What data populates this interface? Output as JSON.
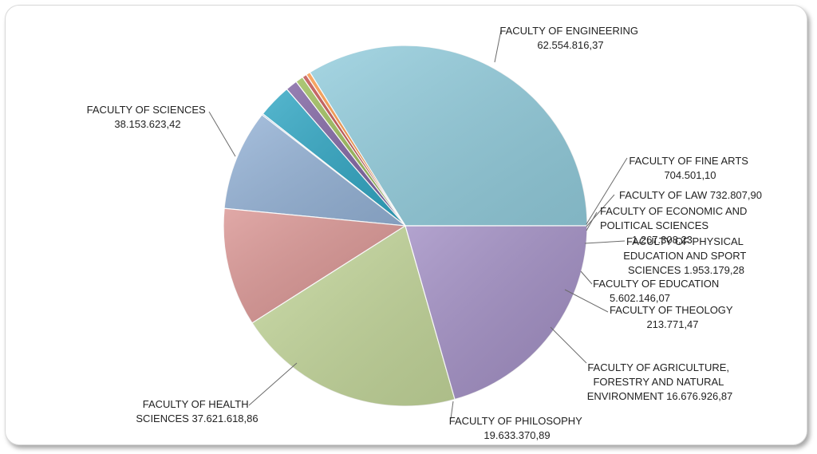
{
  "chart_data": {
    "type": "pie",
    "title": "",
    "slices": [
      {
        "name": "FACULTY OF ENGINEERING",
        "value": 62554816.37,
        "value_label": "62.554.816,37",
        "color": "#93cddd"
      },
      {
        "name": "FACULTY OF FINE ARTS",
        "value": 704501.1,
        "value_label": "704.501,10",
        "color": "#f79646"
      },
      {
        "name": "FACULTY OF LAW",
        "value": 732807.9,
        "value_label": "732.807,90",
        "color": "#c0504d"
      },
      {
        "name": "FACULTY OF ECONOMIC AND POLITICAL SCIENCES",
        "value": 1267308.23,
        "value_label": "1.267.308,23",
        "color": "#9bbb59"
      },
      {
        "name": "FACULTY OF PHYSICAL EDUCATION AND SPORT SCIENCES",
        "value": 1953179.28,
        "value_label": "1.953.179,28",
        "color": "#8064a2"
      },
      {
        "name": "FACULTY OF EDUCATION",
        "value": 5602146.07,
        "value_label": "5.602.146,07",
        "color": "#31a7c4"
      },
      {
        "name": "FACULTY OF THEOLOGY",
        "value": 213771.47,
        "value_label": "213.771,47",
        "color": "#4f81bd"
      },
      {
        "name": "FACULTY OF AGRICULTURE, FORESTRY AND NATURAL ENVIRONMENT",
        "value": 16676926.87,
        "value_label": "16.676.926,87",
        "color": "#95b3d7"
      },
      {
        "name": "FACULTY OF PHILOSOPHY",
        "value": 19633370.89,
        "value_label": "19.633.370,89",
        "color": "#da9694"
      },
      {
        "name": "FACULTY OF HEALTH SCIENCES",
        "value": 37621618.86,
        "value_label": "37.621.618,86",
        "color": "#c4d79b"
      },
      {
        "name": "FACULTY OF SCIENCES",
        "value": 38153623.42,
        "value_label": "38.153.623,42",
        "color": "#a28fc4"
      }
    ]
  },
  "labels": {
    "engineering": [
      "FACULTY OF ENGINEERING",
      "62.554.816,37"
    ],
    "fine_arts": [
      "FACULTY OF FINE ARTS",
      "704.501,10"
    ],
    "law": [
      "FACULTY OF LAW 732.807,90"
    ],
    "economic": [
      "FACULTY OF ECONOMIC AND",
      "POLITICAL SCIENCES",
      "1.267.308,23"
    ],
    "physical": [
      "FACULTY OF PHYSICAL",
      "EDUCATION AND SPORT",
      "SCIENCES 1.953.179,28"
    ],
    "education": [
      "FACULTY OF EDUCATION",
      "5.602.146,07"
    ],
    "theology": [
      "FACULTY OF THEOLOGY",
      "213.771,47"
    ],
    "agriculture": [
      "FACULTY OF AGRICULTURE,",
      "FORESTRY AND NATURAL",
      "ENVIRONMENT 16.676.926,87"
    ],
    "philosophy": [
      "FACULTY OF PHILOSOPHY",
      "19.633.370,89"
    ],
    "health": [
      "FACULTY OF HEALTH",
      "SCIENCES 37.621.618,86"
    ],
    "sciences": [
      "FACULTY OF SCIENCES",
      "38.153.623,42"
    ]
  }
}
